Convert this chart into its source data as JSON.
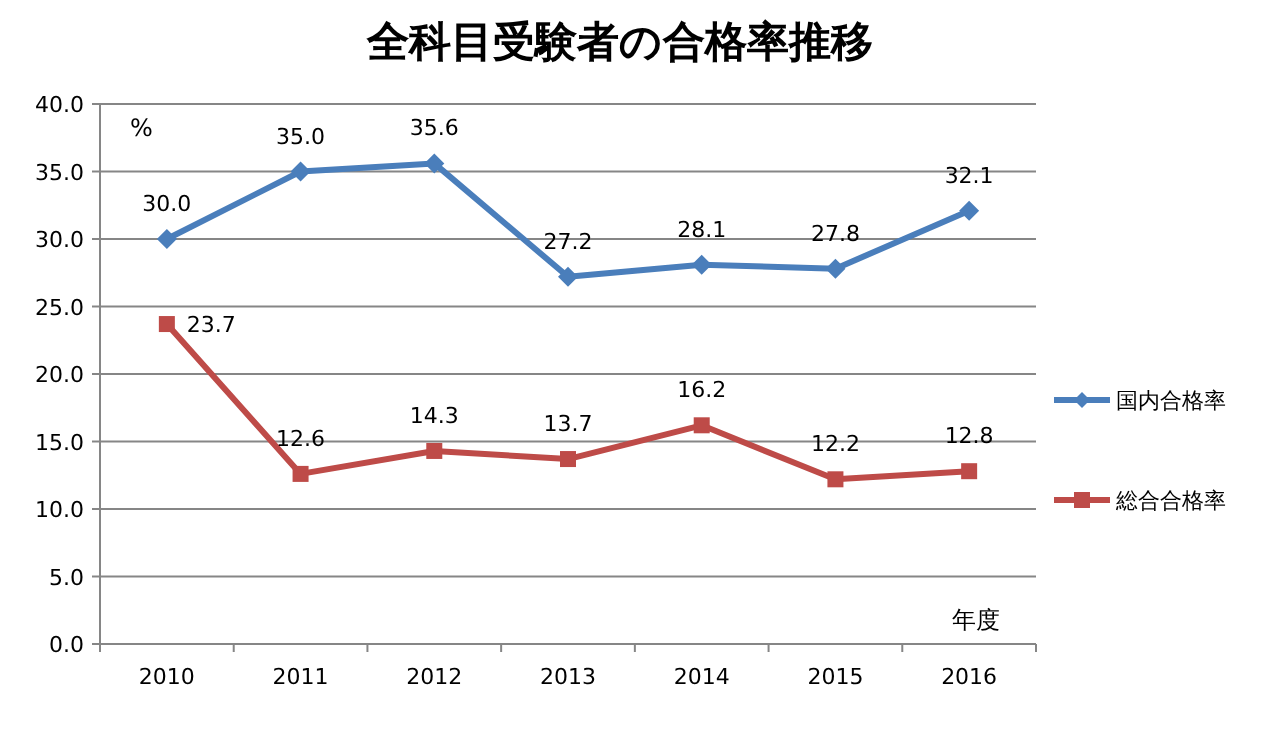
{
  "chart_data": {
    "type": "line",
    "title": "全科目受験者の合格率推移",
    "xlabel": "年度",
    "ylabel": "%",
    "categories": [
      "2010",
      "2011",
      "2012",
      "2013",
      "2014",
      "2015",
      "2016"
    ],
    "series": [
      {
        "name": "国内合格率",
        "color": "#4a7ebb",
        "marker": "diamond",
        "values": [
          30.0,
          35.0,
          35.6,
          27.2,
          28.1,
          27.8,
          32.1
        ],
        "value_labels": [
          "30.0",
          "35.0",
          "35.6",
          "27.2",
          "28.1",
          "27.8",
          "32.1"
        ]
      },
      {
        "name": "総合合格率",
        "color": "#be4b48",
        "marker": "square",
        "values": [
          23.7,
          12.6,
          14.3,
          13.7,
          16.2,
          12.2,
          12.8
        ],
        "value_labels": [
          "23.7",
          "12.6",
          "14.3",
          "13.7",
          "16.2",
          "12.2",
          "12.8"
        ]
      }
    ],
    "ylim": [
      0,
      40
    ],
    "yticks": [
      {
        "value": 0,
        "label": "0.0"
      },
      {
        "value": 5,
        "label": "5.0"
      },
      {
        "value": 10,
        "label": "10.0"
      },
      {
        "value": 15,
        "label": "15.0"
      },
      {
        "value": 20,
        "label": "20.0"
      },
      {
        "value": 25,
        "label": "25.0"
      },
      {
        "value": 30,
        "label": "30.0"
      },
      {
        "value": 35,
        "label": "35.0"
      },
      {
        "value": 40,
        "label": "40.0"
      }
    ],
    "grid": "y",
    "legend": "right",
    "line_style": "solid"
  }
}
